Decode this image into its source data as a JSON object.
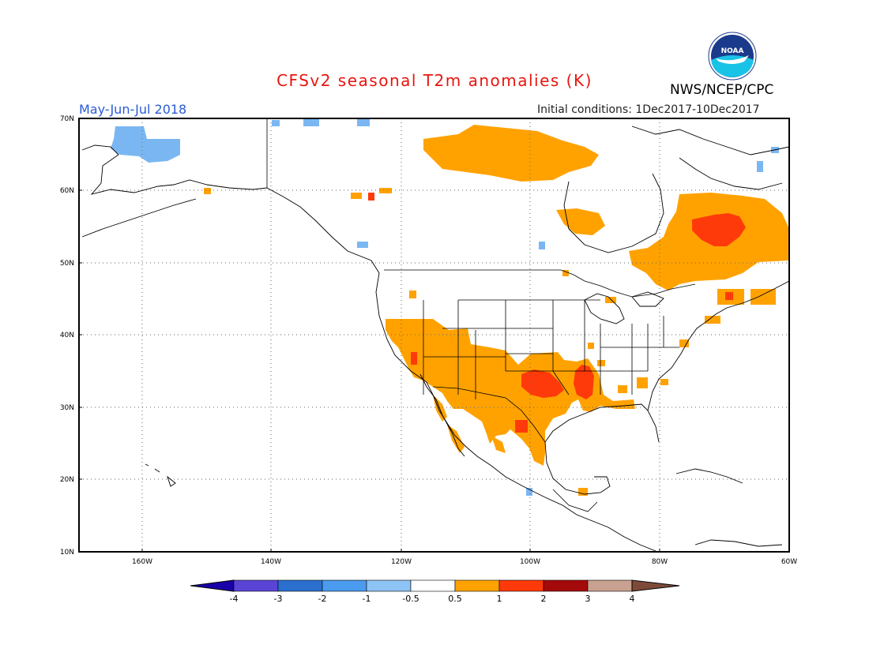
{
  "header": {
    "title": "CFSv2 seasonal T2m anomalies (K)",
    "agency": "NWS/NCEP/CPC",
    "season": "May-Jun-Jul 2018",
    "initial_conditions": "Initial conditions: 1Dec2017-10Dec2017",
    "logo_text": "NOAA"
  },
  "map": {
    "lat_labels": [
      "70N",
      "60N",
      "50N",
      "40N",
      "30N",
      "20N",
      "10N"
    ],
    "lon_labels": [
      "160W",
      "140W",
      "120W",
      "100W",
      "80W",
      "60W"
    ],
    "colors": {
      "warm_light": "#ffa200",
      "warm_mid": "#ff3a0a",
      "cool_light": "#7ab7f2",
      "coast": "#000000"
    }
  },
  "colorbar": {
    "labels": [
      "-4",
      "-3",
      "-2",
      "-1",
      "-0.5",
      "0.5",
      "1",
      "2",
      "3",
      "4"
    ],
    "colors": [
      "#1a00a8",
      "#5a44d6",
      "#2b6fcf",
      "#4b9bee",
      "#8ec3f5",
      "#ffffff",
      "#ffa200",
      "#ff3a0a",
      "#a50a0a",
      "#c9a190",
      "#7d4a3a"
    ]
  }
}
